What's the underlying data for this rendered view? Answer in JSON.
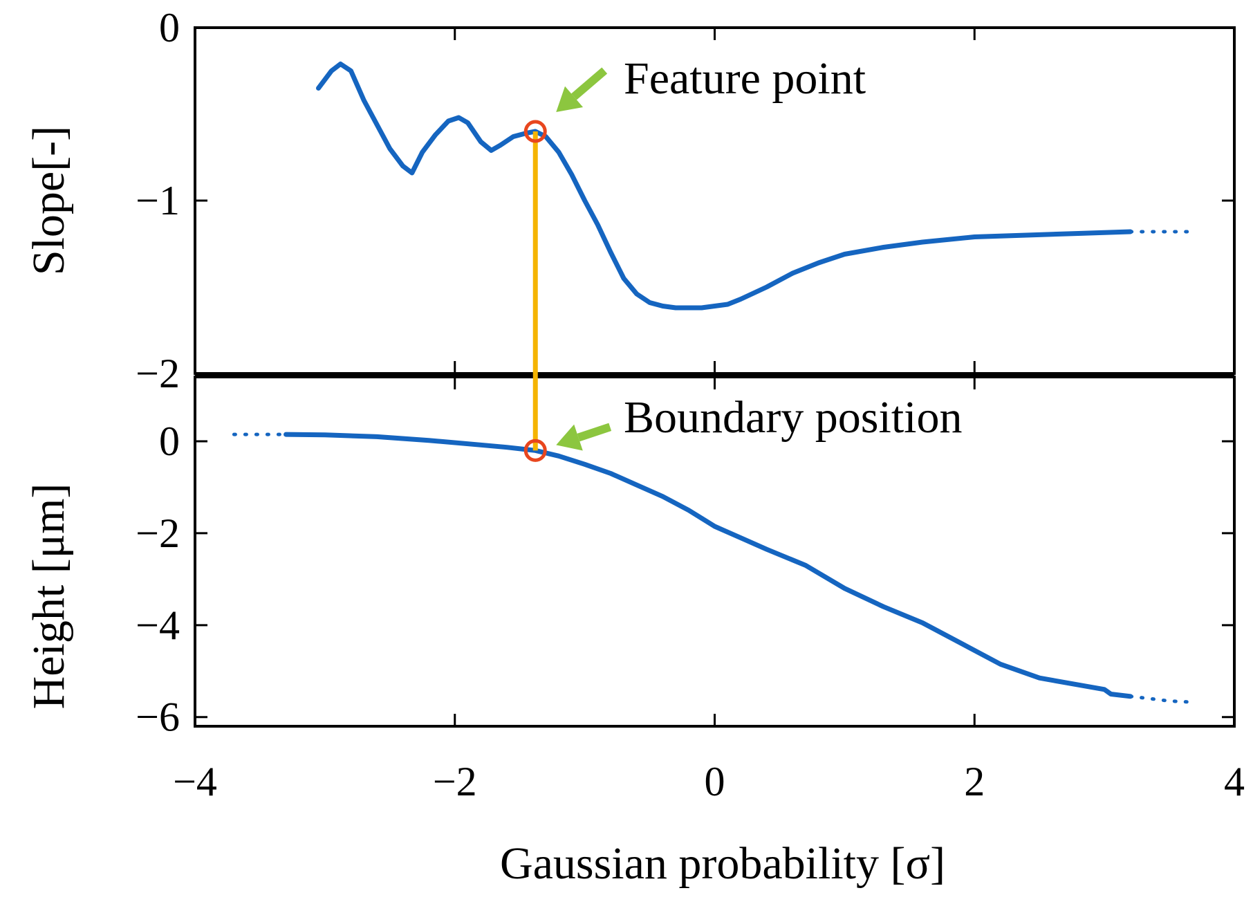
{
  "chart_data": [
    {
      "type": "line",
      "panel": "top",
      "xlabel": "",
      "ylabel": "Slope[-]",
      "xlim": [
        -4,
        4
      ],
      "ylim": [
        -2,
        0
      ],
      "yticks": [
        0,
        -1,
        -2
      ],
      "ytick_labels": [
        "0",
        "−1",
        "−2"
      ],
      "grid": false,
      "color": "#1565c0",
      "series": [
        {
          "x": [
            -3.05,
            -2.95,
            -2.88,
            -2.8,
            -2.7,
            -2.6,
            -2.5,
            -2.4,
            -2.33,
            -2.25,
            -2.15,
            -2.05,
            -1.97,
            -1.9,
            -1.8,
            -1.72,
            -1.65,
            -1.55,
            -1.45,
            -1.38,
            -1.3,
            -1.2,
            -1.1,
            -1.0,
            -0.9,
            -0.8,
            -0.7,
            -0.6,
            -0.5,
            -0.4,
            -0.3,
            -0.2,
            -0.1,
            0.0,
            0.1,
            0.2,
            0.4,
            0.6,
            0.8,
            1.0,
            1.3,
            1.6,
            2.0,
            2.4,
            2.8,
            3.2
          ],
          "y": [
            -0.35,
            -0.25,
            -0.21,
            -0.25,
            -0.42,
            -0.56,
            -0.7,
            -0.8,
            -0.84,
            -0.72,
            -0.62,
            -0.54,
            -0.52,
            -0.55,
            -0.66,
            -0.71,
            -0.68,
            -0.63,
            -0.61,
            -0.6,
            -0.63,
            -0.72,
            -0.85,
            -1.0,
            -1.14,
            -1.3,
            -1.45,
            -1.54,
            -1.59,
            -1.61,
            -1.62,
            -1.62,
            -1.62,
            -1.61,
            -1.6,
            -1.57,
            -1.5,
            -1.42,
            -1.36,
            -1.31,
            -1.27,
            -1.24,
            -1.21,
            -1.2,
            -1.19,
            -1.18
          ]
        },
        {
          "style": "dotted",
          "x": [
            3.2,
            3.3,
            3.4,
            3.5,
            3.6,
            3.7
          ],
          "y": [
            -1.18,
            -1.18,
            -1.18,
            -1.18,
            -1.18,
            -1.18
          ]
        }
      ]
    },
    {
      "type": "line",
      "panel": "bottom",
      "xlabel": "Gaussian probability [σ]",
      "ylabel": "Height [μm]",
      "xlim": [
        -4,
        4
      ],
      "ylim": [
        -6.2,
        1.4
      ],
      "xticks": [
        -4,
        -2,
        0,
        2,
        4
      ],
      "xtick_labels": [
        "−4",
        "−2",
        "0",
        "2",
        "4"
      ],
      "yticks": [
        0,
        -2,
        -4,
        -6
      ],
      "ytick_labels": [
        "0",
        "−2",
        "−4",
        "−6"
      ],
      "grid": false,
      "color": "#1565c0",
      "series": [
        {
          "style": "dotted",
          "x": [
            -3.7,
            -3.55,
            -3.4,
            -3.3
          ],
          "y": [
            0.15,
            0.15,
            0.15,
            0.15
          ]
        },
        {
          "x": [
            -3.3,
            -3.0,
            -2.6,
            -2.2,
            -1.8,
            -1.6,
            -1.38,
            -1.2,
            -1.0,
            -0.8,
            -0.6,
            -0.4,
            -0.2,
            0.0,
            0.2,
            0.4,
            0.7,
            1.0,
            1.3,
            1.6,
            1.9,
            2.2,
            2.5,
            2.8,
            3.0,
            3.05,
            3.2
          ],
          "y": [
            0.15,
            0.14,
            0.1,
            0.02,
            -0.08,
            -0.13,
            -0.2,
            -0.32,
            -0.5,
            -0.7,
            -0.95,
            -1.2,
            -1.5,
            -1.85,
            -2.1,
            -2.35,
            -2.7,
            -3.2,
            -3.6,
            -3.95,
            -4.4,
            -4.85,
            -5.15,
            -5.3,
            -5.4,
            -5.5,
            -5.55
          ]
        },
        {
          "style": "dotted",
          "x": [
            3.2,
            3.35,
            3.5,
            3.7
          ],
          "y": [
            -5.55,
            -5.6,
            -5.65,
            -5.68
          ]
        }
      ]
    }
  ],
  "feature_point": {
    "x": -1.38,
    "slope_y": -0.6,
    "height_y": -0.2
  },
  "annotations": {
    "feature": "Feature point",
    "boundary": "Boundary position"
  },
  "colors": {
    "curve": "#1565c0",
    "marker": "#e8461e",
    "connector": "#f5b400",
    "arrow": "#8cc63f"
  }
}
